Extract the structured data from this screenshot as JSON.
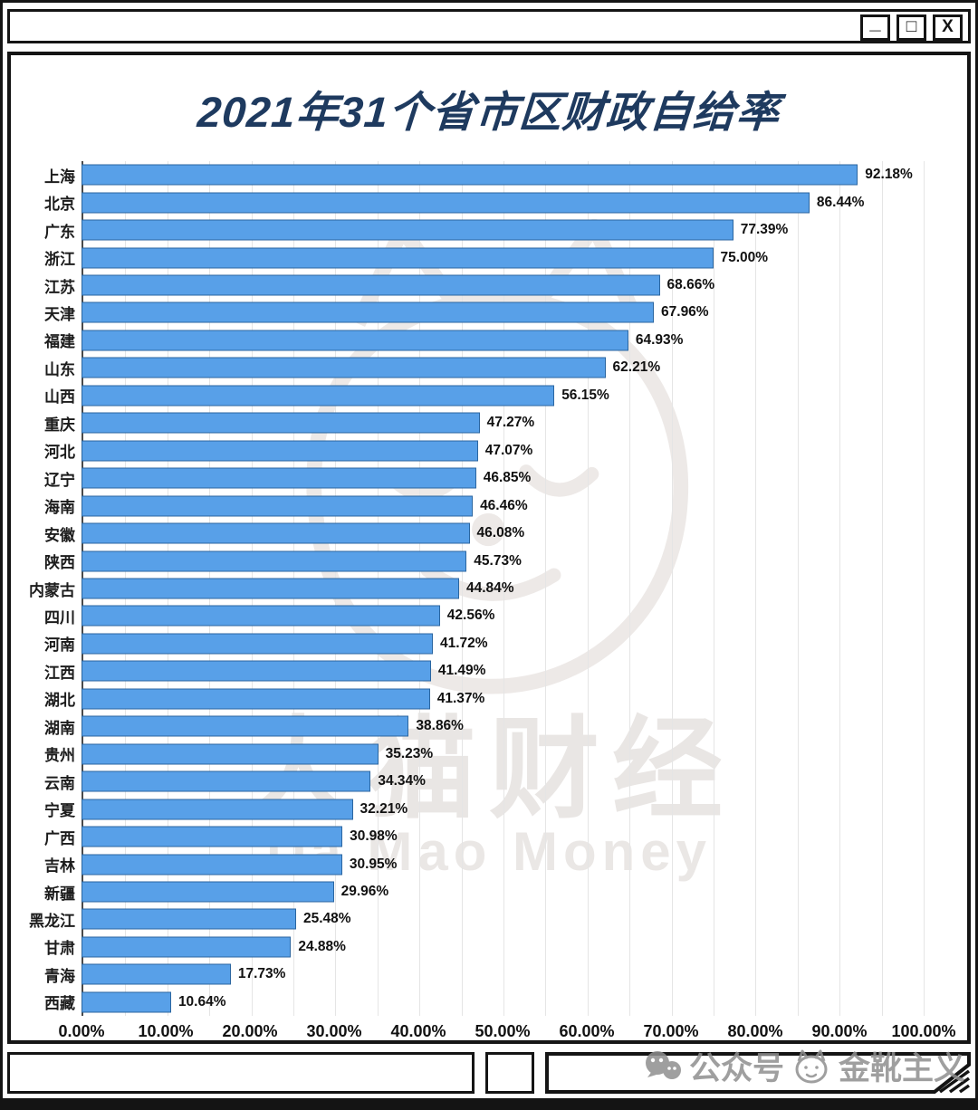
{
  "window": {
    "controls": [
      {
        "name": "minimize",
        "glyph": "_"
      },
      {
        "name": "maximize",
        "glyph": "□"
      },
      {
        "name": "close",
        "glyph": "X"
      }
    ]
  },
  "chart_data": {
    "type": "bar",
    "orientation": "horizontal",
    "title": "2021年31个省市区财政自给率",
    "categories": [
      "上海",
      "北京",
      "广东",
      "浙江",
      "江苏",
      "天津",
      "福建",
      "山东",
      "山西",
      "重庆",
      "河北",
      "辽宁",
      "海南",
      "安徽",
      "陕西",
      "内蒙古",
      "四川",
      "河南",
      "江西",
      "湖北",
      "湖南",
      "贵州",
      "云南",
      "宁夏",
      "广西",
      "吉林",
      "新疆",
      "黑龙江",
      "甘肃",
      "青海",
      "西藏"
    ],
    "values": [
      92.18,
      86.44,
      77.39,
      75.0,
      68.66,
      67.96,
      64.93,
      62.21,
      56.15,
      47.27,
      47.07,
      46.85,
      46.46,
      46.08,
      45.73,
      44.84,
      42.56,
      41.72,
      41.49,
      41.37,
      38.86,
      35.23,
      34.34,
      32.21,
      30.98,
      30.95,
      29.96,
      25.48,
      24.88,
      17.73,
      10.64
    ],
    "value_suffix": "%",
    "x_ticks": [
      "0.00%",
      "10.00%",
      "20.00%",
      "30.00%",
      "40.00%",
      "50.00%",
      "60.00%",
      "70.00%",
      "80.00%",
      "90.00%",
      "100.00%"
    ],
    "xlim": [
      0,
      100
    ],
    "grid": true,
    "grid_step_percent": 5,
    "colors": {
      "bar": "#58A0E8",
      "bar_border": "#2B66A0",
      "title": "#1E3A5F",
      "frame": "#141414"
    }
  },
  "watermark": {
    "center_cn": "大猫财经",
    "center_en": "Da Mao Money",
    "bottom_right_prefix": "公众号",
    "bottom_right_name": "金靴主义"
  }
}
